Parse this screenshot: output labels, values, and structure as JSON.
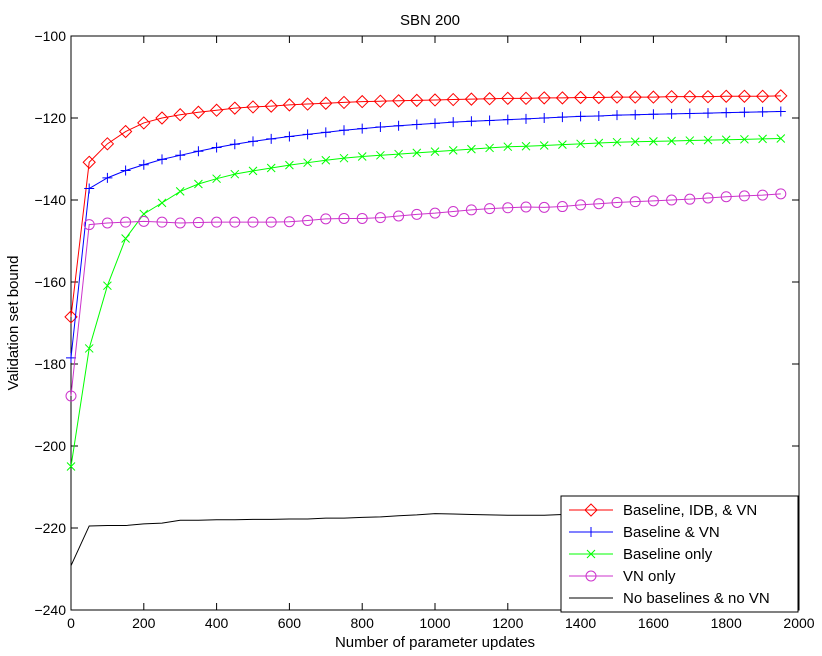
{
  "chart_data": {
    "type": "line",
    "title": "SBN 200",
    "xlabel": "Number of parameter updates",
    "ylabel": "Validation set bound",
    "xlim": [
      0,
      2000
    ],
    "ylim": [
      -240,
      -100
    ],
    "xticks": [
      0,
      200,
      400,
      600,
      800,
      1000,
      1200,
      1400,
      1600,
      1800,
      2000
    ],
    "yticks": [
      -240,
      -220,
      -200,
      -180,
      -160,
      -140,
      -120,
      -100
    ],
    "xtick_labels": [
      "0",
      "200",
      "400",
      "600",
      "800",
      "1000",
      "1200",
      "1400",
      "1600",
      "1800",
      "2000"
    ],
    "ytick_labels": [
      "-240",
      "-220",
      "-200",
      "-180",
      "-160",
      "-140",
      "-120",
      "-100"
    ],
    "grid": false,
    "legend_position": "bottom-right",
    "x": [
      0,
      50,
      100,
      150,
      200,
      250,
      300,
      350,
      400,
      450,
      500,
      550,
      600,
      650,
      700,
      750,
      800,
      850,
      900,
      950,
      1000,
      1050,
      1100,
      1150,
      1200,
      1250,
      1300,
      1350,
      1400,
      1450,
      1500,
      1550,
      1600,
      1650,
      1700,
      1750,
      1800,
      1850,
      1900,
      1950
    ],
    "series": [
      {
        "name": "Baseline, IDB, & VN",
        "color": "#ff0000",
        "marker": "diamond",
        "values": [
          -168.5,
          -130.8,
          -126.3,
          -123.3,
          -121.2,
          -120.0,
          -119.2,
          -118.6,
          -118.1,
          -117.6,
          -117.3,
          -117.1,
          -116.8,
          -116.6,
          -116.4,
          -116.2,
          -116.0,
          -115.9,
          -115.8,
          -115.7,
          -115.6,
          -115.5,
          -115.4,
          -115.3,
          -115.2,
          -115.2,
          -115.1,
          -115.1,
          -115.0,
          -115.0,
          -114.9,
          -114.9,
          -114.9,
          -114.8,
          -114.8,
          -114.8,
          -114.7,
          -114.7,
          -114.7,
          -114.6
        ]
      },
      {
        "name": "Baseline & VN",
        "color": "#0000ff",
        "marker": "plus",
        "values": [
          -178.5,
          -137.2,
          -134.6,
          -132.8,
          -131.4,
          -130.1,
          -129.1,
          -128.1,
          -127.2,
          -126.4,
          -125.7,
          -125.1,
          -124.5,
          -124.0,
          -123.5,
          -123.0,
          -122.6,
          -122.2,
          -121.9,
          -121.6,
          -121.3,
          -121.0,
          -120.8,
          -120.6,
          -120.4,
          -120.2,
          -120.0,
          -119.8,
          -119.6,
          -119.5,
          -119.3,
          -119.2,
          -119.1,
          -119.0,
          -118.9,
          -118.8,
          -118.7,
          -118.6,
          -118.5,
          -118.4
        ]
      },
      {
        "name": "Baseline only",
        "color": "#00ff00",
        "marker": "x",
        "values": [
          -205.0,
          -176.2,
          -160.9,
          -149.4,
          -143.4,
          -140.7,
          -137.9,
          -136.1,
          -134.8,
          -133.7,
          -132.9,
          -132.2,
          -131.5,
          -130.9,
          -130.3,
          -129.8,
          -129.4,
          -129.1,
          -128.8,
          -128.5,
          -128.2,
          -127.9,
          -127.6,
          -127.3,
          -127.0,
          -126.9,
          -126.7,
          -126.5,
          -126.3,
          -126.1,
          -125.9,
          -125.8,
          -125.7,
          -125.6,
          -125.5,
          -125.4,
          -125.3,
          -125.2,
          -125.1,
          -125.0
        ]
      },
      {
        "name": "VN only",
        "color": "#cc33cc",
        "marker": "circle",
        "values": [
          -187.8,
          -146.0,
          -145.6,
          -145.4,
          -145.2,
          -145.4,
          -145.6,
          -145.5,
          -145.4,
          -145.4,
          -145.4,
          -145.4,
          -145.3,
          -145.0,
          -144.6,
          -144.5,
          -144.5,
          -144.3,
          -143.9,
          -143.5,
          -143.2,
          -142.8,
          -142.4,
          -142.1,
          -141.9,
          -141.7,
          -141.8,
          -141.6,
          -141.2,
          -140.9,
          -140.6,
          -140.4,
          -140.2,
          -140.0,
          -139.8,
          -139.5,
          -139.2,
          -139.0,
          -138.8,
          -138.5
        ]
      },
      {
        "name": "No baselines & no VN",
        "color": "#000000",
        "marker": "none",
        "values": [
          -229.2,
          -219.5,
          -219.4,
          -219.4,
          -219.0,
          -218.8,
          -218.1,
          -218.1,
          -218.0,
          -218.0,
          -217.9,
          -217.9,
          -217.8,
          -217.8,
          -217.6,
          -217.6,
          -217.4,
          -217.3,
          -217.0,
          -216.8,
          -216.5,
          -216.6,
          -216.7,
          -216.8,
          -216.9,
          -216.9,
          -216.9,
          -216.7,
          -216.7,
          -216.6,
          -216.6,
          -216.6,
          -216.6,
          -216.5,
          -216.5,
          -216.5,
          -216.5,
          -216.4,
          -216.4,
          -216.4
        ]
      }
    ]
  }
}
